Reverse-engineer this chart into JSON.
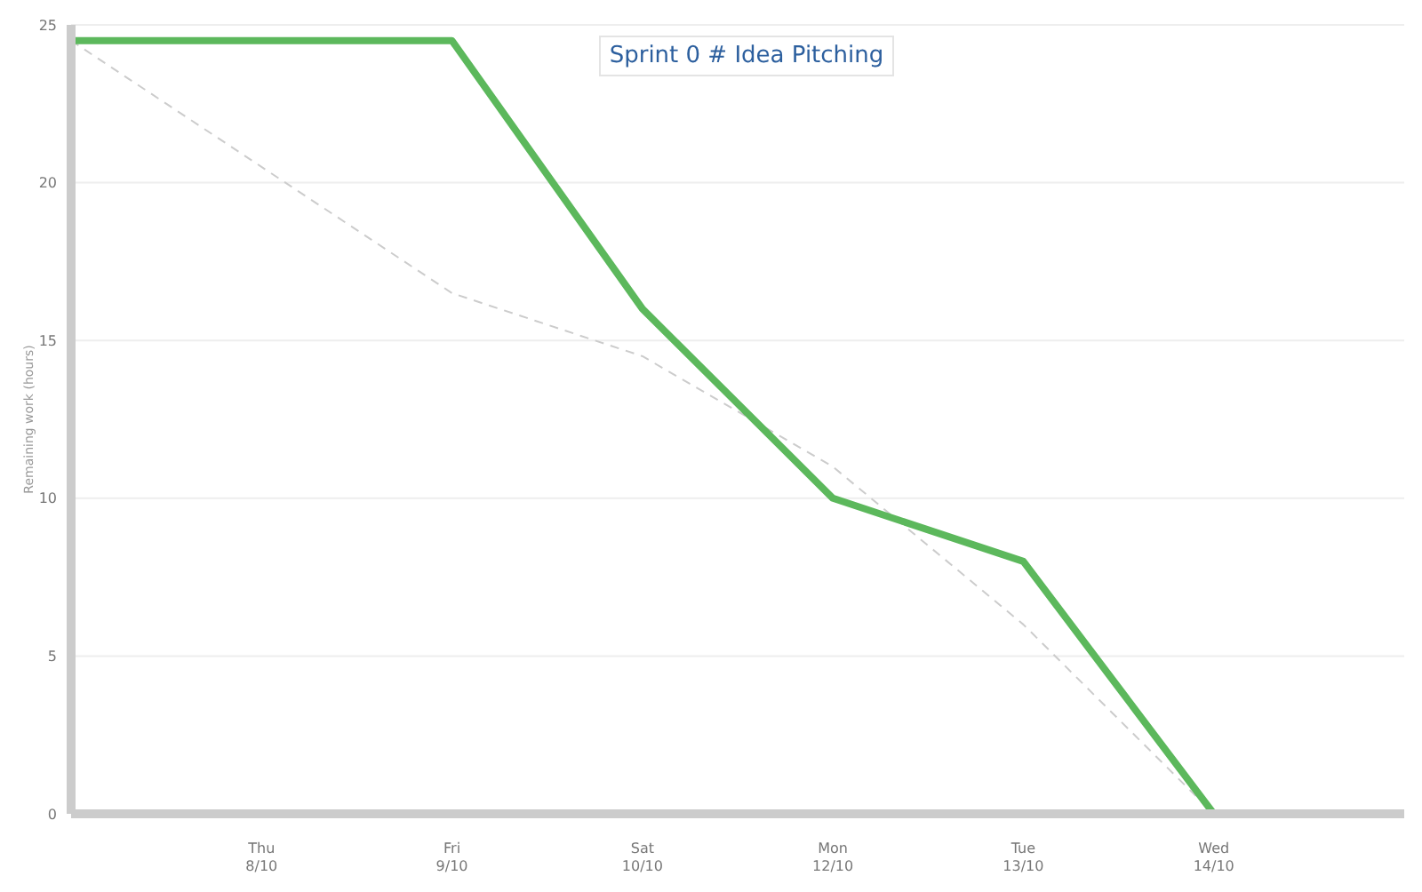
{
  "chart_data": {
    "type": "line",
    "title": "Sprint 0 # Idea Pitching",
    "ylabel": "Remaining work (hours)",
    "categories": [
      null,
      "Thu 8/10",
      "Fri 9/10",
      "Sat 10/10",
      "Mon 12/10",
      "Tue 13/10",
      "Wed 14/10",
      null
    ],
    "series": [
      {
        "color": "#cccccc",
        "line_style": "dashed",
        "values": [
          24.5,
          20.5,
          16.5,
          14.5,
          11,
          6,
          0,
          null
        ]
      },
      {
        "color": "#5cb85c",
        "line_style": "solid",
        "values": [
          24.5,
          24.5,
          24.5,
          16,
          10,
          8,
          0,
          null
        ]
      }
    ],
    "ylim": [
      0,
      25
    ],
    "yticks": [
      0,
      5,
      10,
      15,
      20,
      25
    ],
    "grid": "y",
    "legend": false,
    "marker": "none"
  }
}
